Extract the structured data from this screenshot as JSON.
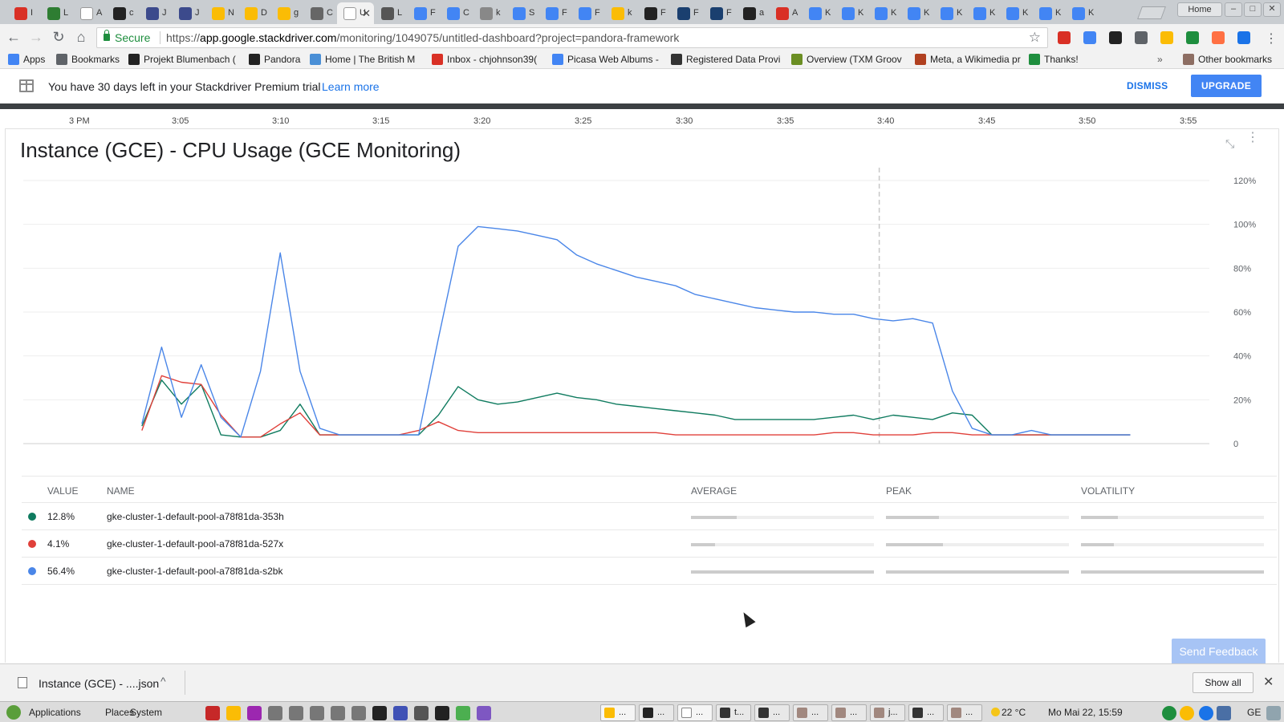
{
  "browser": {
    "tabs": [
      {
        "title": "I",
        "color": "#d93025"
      },
      {
        "title": "L",
        "color": "#2e7d32"
      },
      {
        "title": "A",
        "color": "#ffffff"
      },
      {
        "title": "c",
        "color": "#222222"
      },
      {
        "title": "J",
        "color": "#3c4a8c"
      },
      {
        "title": "J",
        "color": "#3c4a8c"
      },
      {
        "title": "N",
        "color": "#fbbc05"
      },
      {
        "title": "D",
        "color": "#fbbc05"
      },
      {
        "title": "g",
        "color": "#fbbc05"
      },
      {
        "title": "C",
        "color": "#666666"
      },
      {
        "title": "U",
        "color": "#ffffff",
        "active": true
      },
      {
        "title": "L",
        "color": "#555555"
      },
      {
        "title": "F",
        "color": "#4285f4"
      },
      {
        "title": "C",
        "color": "#4285f4"
      },
      {
        "title": "k",
        "color": "#888888"
      },
      {
        "title": "S",
        "color": "#4285f4"
      },
      {
        "title": "F",
        "color": "#4285f4"
      },
      {
        "title": "F",
        "color": "#4285f4"
      },
      {
        "title": "k",
        "color": "#fbbc05"
      },
      {
        "title": "F",
        "color": "#222222"
      },
      {
        "title": "F",
        "color": "#1a3f6f"
      },
      {
        "title": "F",
        "color": "#1a3f6f"
      },
      {
        "title": "a",
        "color": "#222222"
      },
      {
        "title": "A",
        "color": "#d93025"
      },
      {
        "title": "K",
        "color": "#4285f4"
      },
      {
        "title": "K",
        "color": "#4285f4"
      },
      {
        "title": "K",
        "color": "#4285f4"
      },
      {
        "title": "K",
        "color": "#4285f4"
      },
      {
        "title": "K",
        "color": "#4285f4"
      },
      {
        "title": "K",
        "color": "#4285f4"
      },
      {
        "title": "K",
        "color": "#4285f4"
      },
      {
        "title": "K",
        "color": "#4285f4"
      },
      {
        "title": "K",
        "color": "#4285f4"
      }
    ],
    "window_home_label": "Home",
    "secure_label": "Secure",
    "url_scheme": "https://",
    "url_host": "app.google.stackdriver.com",
    "url_path": "/monitoring/1049075/untitled-dashboard?project=pandora-framework",
    "extension_colors": [
      "#d93025",
      "#4285f4",
      "#222222",
      "#5f6368",
      "#fbbc05",
      "#1e8e3e",
      "#ff7043",
      "#1a73e8"
    ]
  },
  "bookmarks": [
    {
      "label": "Apps",
      "color": "#4285f4"
    },
    {
      "label": "Bookmarks",
      "color": "#5f6368"
    },
    {
      "label": "Projekt Blumenbach (",
      "color": "#222222"
    },
    {
      "label": "Pandora",
      "color": "#222222"
    },
    {
      "label": "Home | The British M",
      "color": "#4a8fd6"
    },
    {
      "label": "Inbox - chjohnson39(",
      "color": "#d93025"
    },
    {
      "label": "Picasa Web Albums -",
      "color": "#4285f4"
    },
    {
      "label": "Registered Data Provi",
      "color": "#333333"
    },
    {
      "label": "Overview (TXM Groov",
      "color": "#6b8e23"
    },
    {
      "label": "Meta, a Wikimedia pr",
      "color": "#b04020"
    },
    {
      "label": "Thanks!",
      "color": "#1e8e3e"
    }
  ],
  "bookmarks_more": "»",
  "other_bookmarks": "Other bookmarks",
  "banner": {
    "text": "You have 30 days left in your Stackdriver Premium trial",
    "link": "Learn more",
    "dismiss": "DISMISS",
    "upgrade": "UPGRADE"
  },
  "timeline_labels": [
    "3 PM",
    "3:05",
    "3:10",
    "3:15",
    "3:20",
    "3:25",
    "3:30",
    "3:35",
    "3:40",
    "3:45",
    "3:50",
    "3:55"
  ],
  "chart_data": {
    "type": "line",
    "title": "Instance (GCE) - CPU Usage (GCE Monitoring)",
    "xlabel": "",
    "ylabel": "",
    "x_unit": "minutes after 3 PM",
    "ylim": [
      0,
      120
    ],
    "yticks": [
      "120%",
      "100%",
      "80%",
      "60%",
      "40%",
      "20%",
      "0"
    ],
    "ytick_values": [
      120,
      100,
      80,
      60,
      40,
      20,
      0
    ],
    "xlim": [
      0,
      60
    ],
    "cursor_x": 43.3,
    "grid": true,
    "series": [
      {
        "name": "gke-cluster-1-default-pool-a78f81da-353h",
        "color": "#0f7b5f",
        "x": [
          6.0,
          7.0,
          8.0,
          9.0,
          10.0,
          11.0,
          12.0,
          13.0,
          14.0,
          15.0,
          16.0,
          17.0,
          18.0,
          19.0,
          20.0,
          21.0,
          22.0,
          23.0,
          24.0,
          25.0,
          26.0,
          27.0,
          28.0,
          29.0,
          30.0,
          31.0,
          32.0,
          33.0,
          34.0,
          35.0,
          36.0,
          37.0,
          38.0,
          39.0,
          40.0,
          41.0,
          42.0,
          43.0,
          44.0,
          45.0,
          46.0,
          47.0,
          48.0,
          49.0,
          50.0,
          51.0,
          52.0,
          53.0,
          54.0,
          55.0,
          56.0
        ],
        "y": [
          8,
          29,
          18,
          27,
          4,
          3,
          3,
          6,
          18,
          4,
          4,
          4,
          4,
          4,
          4,
          13,
          26,
          20,
          18,
          19,
          21,
          23,
          21,
          20,
          18,
          17,
          16,
          15,
          14,
          13,
          11,
          11,
          11,
          11,
          11,
          12,
          13,
          11,
          13,
          12,
          11,
          14,
          13,
          4,
          4,
          4,
          4,
          4,
          4,
          4,
          4
        ]
      },
      {
        "name": "gke-cluster-1-default-pool-a78f81da-527x",
        "color": "#e0403a",
        "x": [
          6.0,
          7.0,
          8.0,
          9.0,
          10.0,
          11.0,
          12.0,
          13.0,
          14.0,
          15.0,
          16.0,
          17.0,
          18.0,
          19.0,
          20.0,
          21.0,
          22.0,
          23.0,
          24.0,
          25.0,
          26.0,
          27.0,
          28.0,
          29.0,
          30.0,
          31.0,
          32.0,
          33.0,
          34.0,
          35.0,
          36.0,
          37.0,
          38.0,
          39.0,
          40.0,
          41.0,
          42.0,
          43.0,
          44.0,
          45.0,
          46.0,
          47.0,
          48.0,
          49.0,
          50.0,
          51.0,
          52.0,
          53.0,
          54.0,
          55.0,
          56.0
        ],
        "y": [
          6,
          31,
          28,
          27,
          13,
          3,
          3,
          9,
          14,
          4,
          4,
          4,
          4,
          4,
          6,
          10,
          6,
          5,
          5,
          5,
          5,
          5,
          5,
          5,
          5,
          5,
          5,
          4,
          4,
          4,
          4,
          4,
          4,
          4,
          4,
          5,
          5,
          4,
          4,
          4,
          5,
          5,
          4,
          4,
          4,
          4,
          4,
          4,
          4,
          4,
          4
        ]
      },
      {
        "name": "gke-cluster-1-default-pool-a78f81da-s2bk",
        "color": "#4a86e8",
        "x": [
          6.0,
          7.0,
          8.0,
          9.0,
          10.0,
          11.0,
          12.0,
          13.0,
          14.0,
          15.0,
          16.0,
          17.0,
          18.0,
          19.0,
          20.0,
          21.0,
          22.0,
          23.0,
          24.0,
          25.0,
          26.0,
          27.0,
          28.0,
          29.0,
          30.0,
          31.0,
          32.0,
          33.0,
          34.0,
          35.0,
          36.0,
          37.0,
          38.0,
          39.0,
          40.0,
          41.0,
          42.0,
          43.0,
          44.0,
          45.0,
          46.0,
          47.0,
          48.0,
          49.0,
          50.0,
          51.0,
          52.0,
          53.0,
          54.0,
          55.0,
          56.0
        ],
        "y": [
          9,
          44,
          12,
          36,
          12,
          3,
          33,
          87,
          33,
          7,
          4,
          4,
          4,
          4,
          4,
          48,
          90,
          99,
          98,
          97,
          95,
          93,
          86,
          82,
          79,
          76,
          74,
          72,
          68,
          66,
          64,
          62,
          61,
          60,
          60,
          59,
          59,
          57,
          56,
          57,
          55,
          24,
          7,
          4,
          4,
          6,
          4,
          4,
          4,
          4,
          4
        ]
      }
    ]
  },
  "legend": {
    "headers": {
      "value": "VALUE",
      "name": "NAME",
      "average": "AVERAGE",
      "peak": "PEAK",
      "volatility": "VOLATILITY"
    },
    "rows": [
      {
        "value": "12.8%",
        "name": "gke-cluster-1-default-pool-a78f81da-353h",
        "color": "#0f7b5f",
        "average_frac": 0.25,
        "peak_frac": 0.29,
        "volatility_frac": 0.2
      },
      {
        "value": "4.1%",
        "name": "gke-cluster-1-default-pool-a78f81da-527x",
        "color": "#e0403a",
        "average_frac": 0.13,
        "peak_frac": 0.31,
        "volatility_frac": 0.18
      },
      {
        "value": "56.4%",
        "name": "gke-cluster-1-default-pool-a78f81da-s2bk",
        "color": "#4a86e8",
        "average_frac": 1.0,
        "peak_frac": 1.0,
        "volatility_frac": 1.0
      }
    ]
  },
  "send_feedback": "Send Feedback",
  "download_shelf": {
    "file_name": "Instance (GCE) - ....json",
    "show_all": "Show all"
  },
  "taskbar": {
    "menus": [
      "Applications",
      "Places",
      "System"
    ],
    "launcher_colors": [
      "#c62828",
      "#fbbc05",
      "#9c27b0",
      "#777777",
      "#777777",
      "#777777",
      "#777777",
      "#777777",
      "#222222",
      "#3f51b5",
      "#555555",
      "#222222",
      "#4caf50",
      "#7e57c2"
    ],
    "tasks": [
      {
        "label": "...",
        "color": "#fbbc05",
        "active": true
      },
      {
        "label": "...",
        "color": "#222222"
      },
      {
        "label": "...",
        "color": "#ffffff",
        "active": true
      },
      {
        "label": "t...",
        "color": "#333333"
      },
      {
        "label": "...",
        "color": "#333333"
      },
      {
        "label": "...",
        "color": "#a1887f"
      },
      {
        "label": "...",
        "color": "#a1887f"
      },
      {
        "label": "j...",
        "color": "#a1887f"
      },
      {
        "label": "...",
        "color": "#333333"
      },
      {
        "label": "...",
        "color": "#a1887f"
      }
    ],
    "weather": "22 °C",
    "clock": "Mo Mai 22, 15:59",
    "lang": "GE"
  }
}
